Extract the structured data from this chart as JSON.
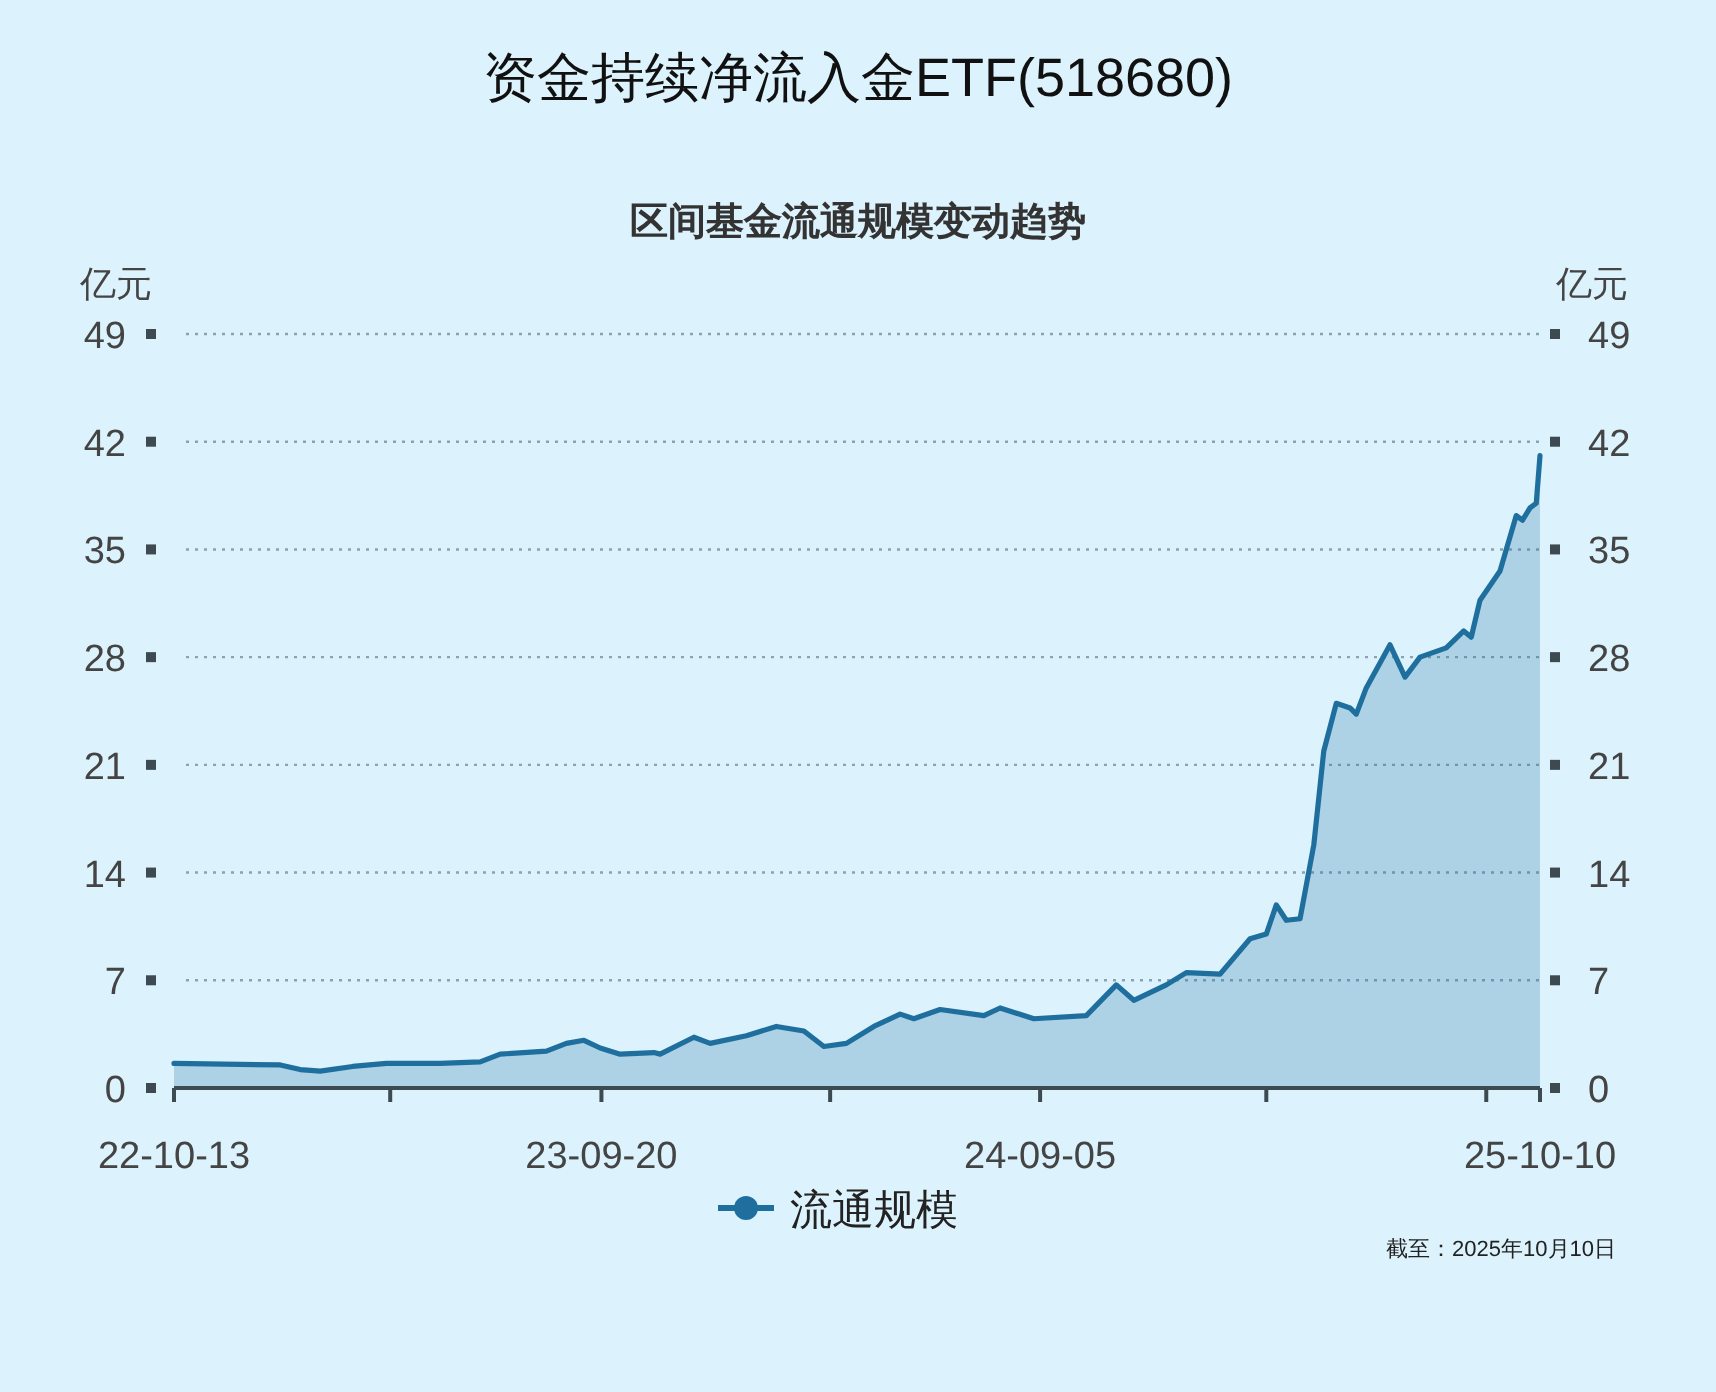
{
  "chart_data": {
    "type": "area",
    "title": "资金持续净流入金ETF(518680)",
    "subtitle": "区间基金流通规模变动趋势",
    "ylabel": "亿元",
    "y2label": "亿元",
    "annotations": [
      "截至：2025年10月10日"
    ],
    "xlim": [
      "2022-10-13",
      "2025-10-10"
    ],
    "xticks": [
      {
        "value": "2022-10-13",
        "label": "22-10-13"
      },
      {
        "value": "2023-04-04",
        "label": null
      },
      {
        "value": "2023-09-20",
        "label": "23-09-20"
      },
      {
        "value": "2024-03-21",
        "label": null
      },
      {
        "value": "2024-09-05",
        "label": "24-09-05"
      },
      {
        "value": "2025-03-05",
        "label": null
      },
      {
        "value": "2025-08-28",
        "label": null
      },
      {
        "value": "2025-10-10",
        "label": "25-10-10"
      }
    ],
    "ylim": [
      0,
      49
    ],
    "yticks": [
      0,
      7,
      14,
      21,
      28,
      35,
      42,
      49
    ],
    "y2lim": [
      0,
      49
    ],
    "y2ticks": [
      0,
      7,
      14,
      21,
      28,
      35,
      42,
      49
    ],
    "grid": "y",
    "legend": "bottom",
    "series": [
      {
        "name": "流通规模",
        "color": "#1f6f9e",
        "x": [
          "2022-10-13",
          "2023-01-06",
          "2023-01-22",
          "2023-02-07",
          "2023-03-05",
          "2023-04-01",
          "2023-05-14",
          "2023-06-15",
          "2023-07-01",
          "2023-08-07",
          "2023-08-23",
          "2023-09-06",
          "2023-09-19",
          "2023-10-05",
          "2023-11-01",
          "2023-11-06",
          "2023-12-03",
          "2023-12-16",
          "2024-01-14",
          "2024-02-07",
          "2024-02-29",
          "2024-03-16",
          "2024-04-03",
          "2024-04-25",
          "2024-05-16",
          "2024-05-27",
          "2024-06-17",
          "2024-07-22",
          "2024-08-04",
          "2024-08-31",
          "2024-10-12",
          "2024-11-05",
          "2024-11-19",
          "2024-12-15",
          "2024-12-31",
          "2025-01-27",
          "2025-02-20",
          "2025-03-05",
          "2025-03-13",
          "2025-03-21",
          "2025-04-01",
          "2025-04-12",
          "2025-04-20",
          "2025-04-30",
          "2025-05-11",
          "2025-05-16",
          "2025-05-24",
          "2025-06-12",
          "2025-06-24",
          "2025-07-06",
          "2025-07-27",
          "2025-08-10",
          "2025-08-16",
          "2025-08-23",
          "2025-09-08",
          "2025-09-21",
          "2025-09-26",
          "2025-10-02",
          "2025-10-07",
          "2025-10-10"
        ],
        "values": [
          1.6,
          1.5,
          1.2,
          1.1,
          1.4,
          1.6,
          1.6,
          1.7,
          2.2,
          2.4,
          2.9,
          3.1,
          2.6,
          2.2,
          2.3,
          2.2,
          3.3,
          2.9,
          3.4,
          4.0,
          3.7,
          2.7,
          2.9,
          4.0,
          4.8,
          4.5,
          5.1,
          4.7,
          5.2,
          4.5,
          4.7,
          6.7,
          5.7,
          6.7,
          7.5,
          7.4,
          9.7,
          10,
          11.9,
          10.9,
          11,
          15.8,
          21.9,
          25,
          24.7,
          24.3,
          26,
          28.8,
          26.7,
          28,
          28.6,
          29.7,
          29.3,
          31.7,
          33.6,
          37.2,
          36.9,
          37.7,
          38,
          41.1
        ]
      }
    ]
  }
}
